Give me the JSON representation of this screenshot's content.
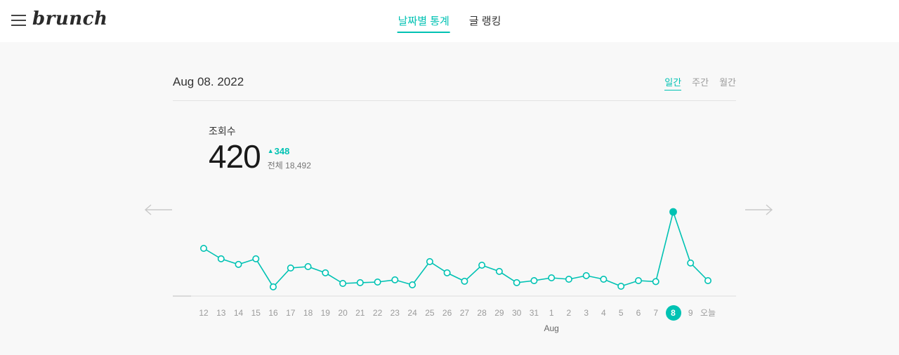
{
  "colors": {
    "accent": "#00c2b3",
    "text_dark": "#333333",
    "text_gray": "#9b9b9b",
    "axis": "#dddddd"
  },
  "header": {
    "menu_icon": "hamburger-icon",
    "logo_text": "brunch",
    "tabs": [
      {
        "label": "날짜별 통계",
        "active": true
      },
      {
        "label": "글 랭킹",
        "active": false
      }
    ]
  },
  "period": {
    "date_label": "Aug 08. 2022",
    "ranges": [
      {
        "label": "일간",
        "active": true
      },
      {
        "label": "주간",
        "active": false
      },
      {
        "label": "월간",
        "active": false
      }
    ]
  },
  "stats": {
    "metric_label": "조회수",
    "value": "420",
    "delta_arrow": "▲",
    "delta_value": "348",
    "total_label": "전체 18,492"
  },
  "pager": {
    "prev_icon": "arrow-left",
    "next_icon": "arrow-right"
  },
  "chart_data": {
    "type": "line",
    "title": "조회수 (daily views)",
    "categories": [
      "12",
      "13",
      "14",
      "15",
      "16",
      "17",
      "18",
      "19",
      "20",
      "21",
      "22",
      "23",
      "24",
      "25",
      "26",
      "27",
      "28",
      "29",
      "30",
      "31",
      "1",
      "2",
      "3",
      "4",
      "5",
      "6",
      "7",
      "8",
      "9",
      "오늘"
    ],
    "values": [
      238,
      186,
      158,
      186,
      46,
      140,
      147,
      116,
      63,
      67,
      70,
      81,
      56,
      172,
      116,
      74,
      154,
      123,
      67,
      77,
      91,
      84,
      102,
      84,
      49,
      77,
      72,
      420,
      165,
      77
    ],
    "selected_index": 27,
    "selected": {
      "label": "8",
      "value": 420
    },
    "month_label": "Aug",
    "month_label_index": 20,
    "xlabel": "",
    "ylabel": "",
    "ylim": [
      0,
      450
    ],
    "grid": false,
    "legend": "none",
    "line_color": "#00c2b3"
  }
}
